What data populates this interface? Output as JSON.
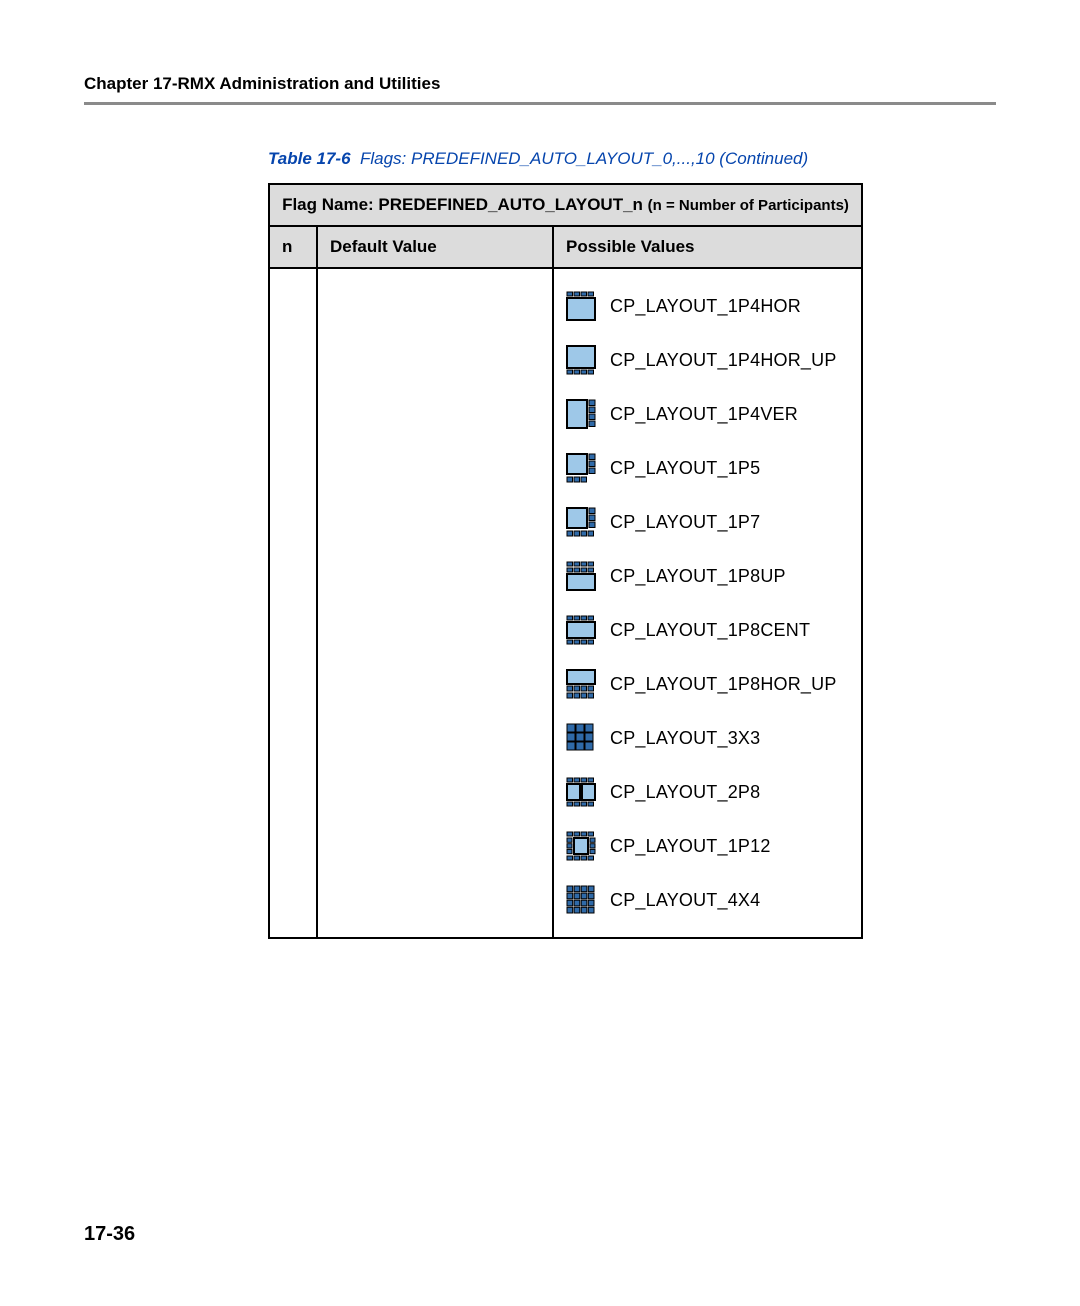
{
  "colors": {
    "page_bg": "#ffffff",
    "text": "#000000",
    "caption": "#0645ad",
    "header_rule": "#8a8a8a",
    "thead_bg": "#dcdcdc",
    "icon_stroke": "#000000",
    "icon_fill_light": "#9ec8e8",
    "icon_fill_blue": "#2f6aa8",
    "icon_bg": "#ffffff"
  },
  "header": {
    "chapter": "Chapter 17-RMX Administration and Utilities"
  },
  "caption": {
    "label": "Table 17-6",
    "text": "Flags: PREDEFINED_AUTO_LAYOUT_0,...,10 (Continued)"
  },
  "table": {
    "title_strong": "Flag Name: PREDEFINED_AUTO_LAYOUT_n ",
    "title_rest": "(n = Number of Participants)",
    "columns": {
      "n": "n",
      "default": "Default Value",
      "possible": "Possible Values"
    },
    "n_value": "",
    "default_value": "",
    "possible_values": [
      {
        "label": "CP_LAYOUT_1P4HOR",
        "icon": "1p4hor"
      },
      {
        "label": "CP_LAYOUT_1P4HOR_UP",
        "icon": "1p4hor_up"
      },
      {
        "label": "CP_LAYOUT_1P4VER",
        "icon": "1p4ver"
      },
      {
        "label": "CP_LAYOUT_1P5",
        "icon": "1p5"
      },
      {
        "label": "CP_LAYOUT_1P7",
        "icon": "1p7"
      },
      {
        "label": "CP_LAYOUT_1P8UP",
        "icon": "1p8up"
      },
      {
        "label": "CP_LAYOUT_1P8CENT",
        "icon": "1p8cent"
      },
      {
        "label": "CP_LAYOUT_1P8HOR_UP",
        "icon": "1p8hor_up"
      },
      {
        "label": "CP_LAYOUT_3X3",
        "icon": "3x3"
      },
      {
        "label": "CP_LAYOUT_2P8",
        "icon": "2p8"
      },
      {
        "label": "CP_LAYOUT_1P12",
        "icon": "1p12"
      },
      {
        "label": "CP_LAYOUT_4X4",
        "icon": "4x4"
      }
    ]
  },
  "page_number": "17-36",
  "icon_style": {
    "size": 30,
    "stroke_w_outer": 2,
    "stroke_w_inner": 1
  }
}
